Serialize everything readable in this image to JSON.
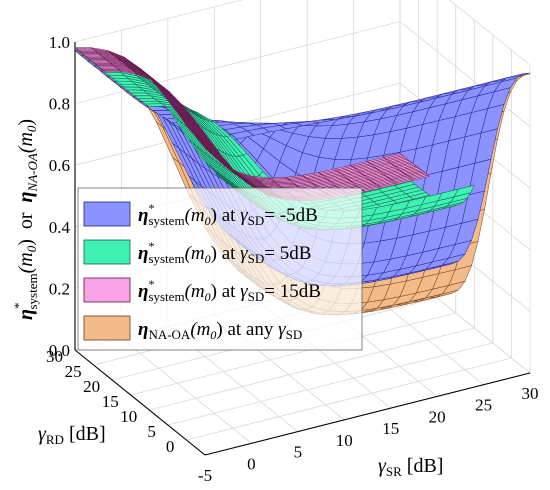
{
  "chart_data": {
    "type": "surface3d",
    "title": "",
    "xlabel": {
      "main": "γ",
      "sub": "SR",
      "unit": " [dB]"
    },
    "ylabel": {
      "main": "γ",
      "sub": "RD",
      "unit": " [dB]"
    },
    "zlabel": {
      "part1_main": "η",
      "part1_sup": "*",
      "part1_sub": "system",
      "part1_arg": "(m",
      "part1_arg_sub": "0",
      "part1_close": ")",
      "mid": "  or  ",
      "part2_main": "η",
      "part2_sub": "NA-OA",
      "part2_arg": "(m",
      "part2_arg_sub": "0",
      "part2_close": ")"
    },
    "xticks": [
      "-5",
      "0",
      "5",
      "10",
      "15",
      "20",
      "25",
      "30"
    ],
    "yticks": [
      "0",
      "5",
      "10",
      "15",
      "20",
      "25",
      "30"
    ],
    "zticks": [
      "0.0",
      "0.2",
      "0.4",
      "0.6",
      "0.8",
      "1.0"
    ],
    "xlim": [
      -5,
      30
    ],
    "ylim": [
      -5,
      30
    ],
    "zlim": [
      0,
      1
    ],
    "grid": true,
    "legend_position": "center-left",
    "series": [
      {
        "legend_main": "η",
        "legend_sup": "*",
        "legend_sub": "system",
        "legend_arg": "(m",
        "legend_arg_sub": "0",
        "legend_close": ")",
        "legend_at": " at ",
        "legend_g": "γ",
        "legend_gsub": "SD",
        "legend_val": "= -5dB",
        "color": "#8c92ff",
        "edge": "#1f228a",
        "gamma_sd": -5
      },
      {
        "legend_main": "η",
        "legend_sup": "*",
        "legend_sub": "system",
        "legend_arg": "(m",
        "legend_arg_sub": "0",
        "legend_close": ")",
        "legend_at": " at ",
        "legend_g": "γ",
        "legend_gsub": "SD",
        "legend_val": "=  5dB",
        "color": "#3ff2b3",
        "edge": "#15604a",
        "gamma_sd": 5
      },
      {
        "legend_main": "η",
        "legend_sup": "*",
        "legend_sub": "system",
        "legend_arg": "(m",
        "legend_arg_sub": "0",
        "legend_close": ")",
        "legend_at": " at ",
        "legend_g": "γ",
        "legend_gsub": "SD",
        "legend_val": "= 15dB",
        "color": "#f9a4e6",
        "edge": "#5e1347",
        "gamma_sd": 15
      },
      {
        "legend_main": "η",
        "legend_sup": "",
        "legend_sub": "NA-OA",
        "legend_arg": "(m",
        "legend_arg_sub": "0",
        "legend_close": ")",
        "legend_at": " at any ",
        "legend_g": "γ",
        "legend_gsub": "SD",
        "legend_val": "",
        "color": "#f3bb8a",
        "edge": "#6e3d14",
        "gamma_sd": null
      }
    ]
  }
}
